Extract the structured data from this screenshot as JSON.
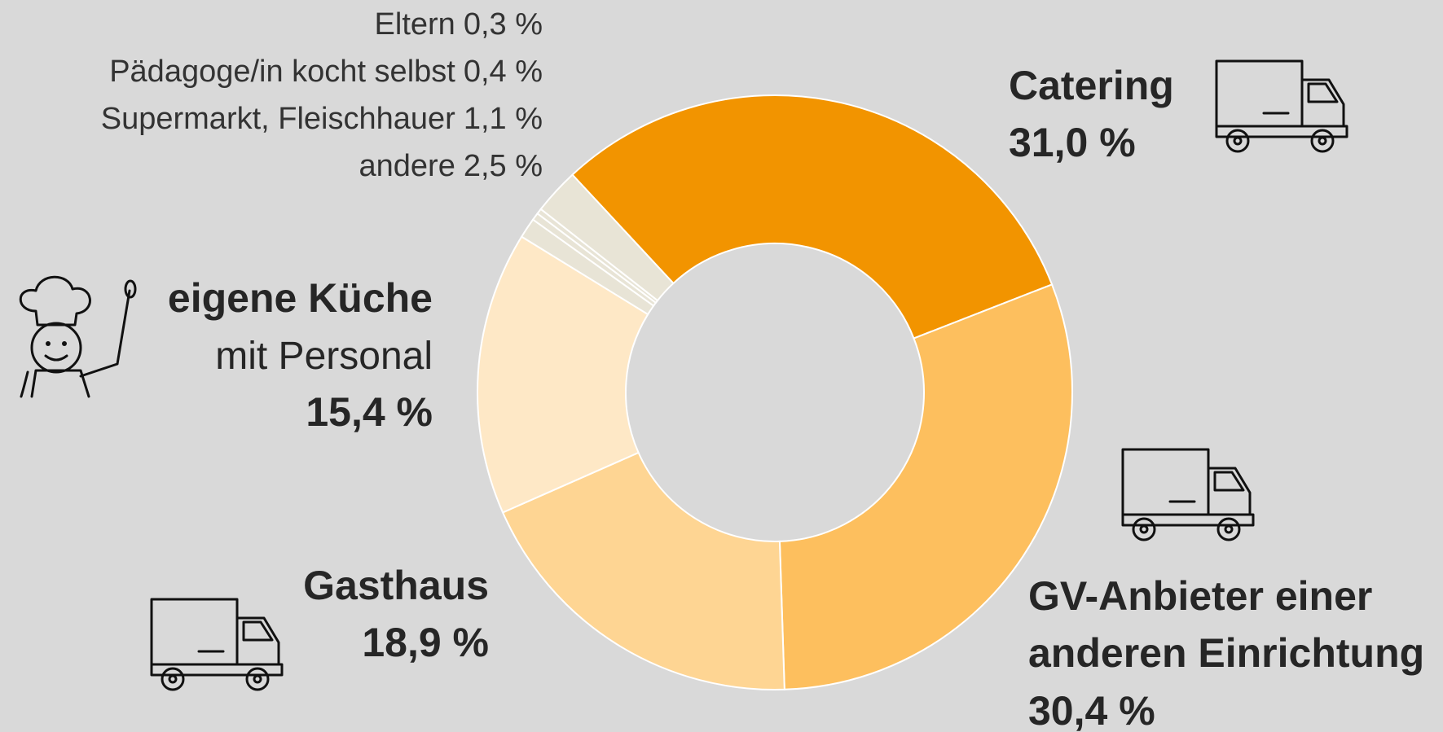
{
  "chart_data": {
    "type": "donut",
    "categories": [
      "Catering",
      "GV-Anbieter einer anderen Einrichtung",
      "Gasthaus",
      "eigene Küche",
      "Supermarkt, Fleischhauer",
      "Pädagoge/in kocht selbst",
      "Eltern",
      "andere"
    ],
    "values": [
      31.0,
      30.4,
      18.9,
      15.4,
      1.1,
      0.4,
      0.3,
      2.5
    ],
    "value_labels": [
      "31,0 %",
      "30,4 %",
      "18,9 %",
      "15,4 %",
      "1,1 %",
      "0,4 %",
      "0,3 %",
      "2,5 %"
    ],
    "colors": [
      "#f29400",
      "#fdbf5e",
      "#fed593",
      "#fee8c6",
      "#e8e4d6",
      "#e8e4d6",
      "#e8e4d6",
      "#e8e4d6"
    ],
    "annotations": [
      {
        "text": "mit Personal"
      }
    ]
  }
}
